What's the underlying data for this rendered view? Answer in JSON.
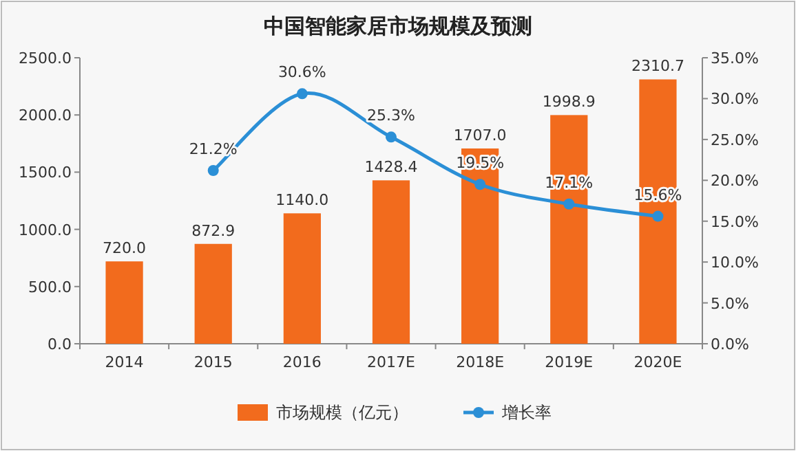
{
  "chart_data": {
    "type": "bar",
    "title": "中国智能家居市场规模及预测",
    "categories": [
      "2014",
      "2015",
      "2016",
      "2017E",
      "2018E",
      "2019E",
      "2020E"
    ],
    "series": [
      {
        "name": "市场规模（亿元）",
        "color": "#f26b1d",
        "values": [
          720.0,
          872.9,
          1140.0,
          1428.4,
          1707.0,
          1998.9,
          2310.7
        ],
        "value_labels": [
          "720.0",
          "872.9",
          "1140.0",
          "1428.4",
          "1707.0",
          "1998.9",
          "2310.7"
        ]
      },
      {
        "name": "增长率",
        "type": "line",
        "axis": "y2",
        "color": "#2b8fd6",
        "marker": "circle",
        "values": [
          null,
          21.2,
          30.6,
          25.3,
          19.5,
          17.1,
          15.6
        ],
        "value_labels": [
          null,
          "21.2%",
          "30.6%",
          "25.3%",
          "19.5%",
          "17.1%",
          "15.6%"
        ]
      }
    ],
    "ylim": [
      0,
      2500
    ],
    "yticks": [
      {
        "value": 0,
        "label": "0.0"
      },
      {
        "value": 500,
        "label": "500.0"
      },
      {
        "value": 1000,
        "label": "1000.0"
      },
      {
        "value": 1500,
        "label": "1500.0"
      },
      {
        "value": 2000,
        "label": "2000.0"
      },
      {
        "value": 2500,
        "label": "2500.0"
      }
    ],
    "y2lim": [
      0,
      35
    ],
    "y2ticks": [
      {
        "value": 0,
        "label": "0.0%"
      },
      {
        "value": 5,
        "label": "5.0%"
      },
      {
        "value": 10,
        "label": "10.0%"
      },
      {
        "value": 15,
        "label": "15.0%"
      },
      {
        "value": 20,
        "label": "20.0%"
      },
      {
        "value": 25,
        "label": "25.0%"
      },
      {
        "value": 30,
        "label": "30.0%"
      },
      {
        "value": 35,
        "label": "35.0%"
      }
    ],
    "legend": "bottom"
  }
}
